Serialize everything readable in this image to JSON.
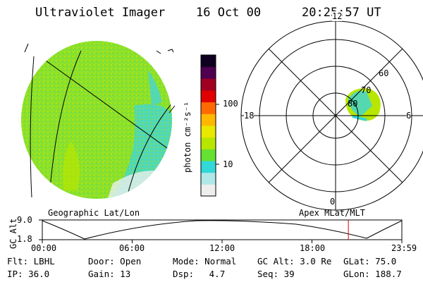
{
  "header": {
    "instrument": "Ultraviolet Imager",
    "date": "16 Oct 00",
    "time": "20:25:57 UT"
  },
  "colorbar": {
    "unit_label": "photon cm⁻²s⁻¹",
    "ticks": [
      "100",
      "10"
    ],
    "scale": "log",
    "colors": [
      "#eeeeee",
      "#b0e8e8",
      "#33d8d8",
      "#66e033",
      "#b8e600",
      "#e8e800",
      "#ffb800",
      "#ff6a00",
      "#e00000",
      "#a00020",
      "#500050",
      "#100020"
    ]
  },
  "polar_plot": {
    "mlt_labels": [
      "12",
      "18",
      "6",
      "0"
    ],
    "mlat_labels": [
      "80",
      "70",
      "60"
    ]
  },
  "timeline": {
    "left_label": "Geographic Lat/Lon",
    "right_label": "Apex MLat/MLT",
    "y_axis_label": "GC Alt",
    "y_ticks": [
      "9.0",
      "1.8"
    ],
    "x_ticks": [
      "00:00",
      "06:00",
      "12:00",
      "18:00",
      "23:59"
    ],
    "current_time_marker_hours": 20.43,
    "marker_color": "#dd0000"
  },
  "meta": {
    "row1": [
      {
        "label": "Flt:",
        "value": "LBHL"
      },
      {
        "label": "Door:",
        "value": "Open"
      },
      {
        "label": "Mode:",
        "value": "Normal"
      },
      {
        "label": "GC Alt:",
        "value": "3.0 Re"
      },
      {
        "label": "GLat:",
        "value": "75.0"
      }
    ],
    "row2": [
      {
        "label": "IP:",
        "value": "36.0"
      },
      {
        "label": "Gain:",
        "value": "13"
      },
      {
        "label": "Dsp:",
        "value": "4.7"
      },
      {
        "label": "Seq:",
        "value": "39"
      },
      {
        "label": "GLon:",
        "value": "188.7"
      }
    ]
  }
}
